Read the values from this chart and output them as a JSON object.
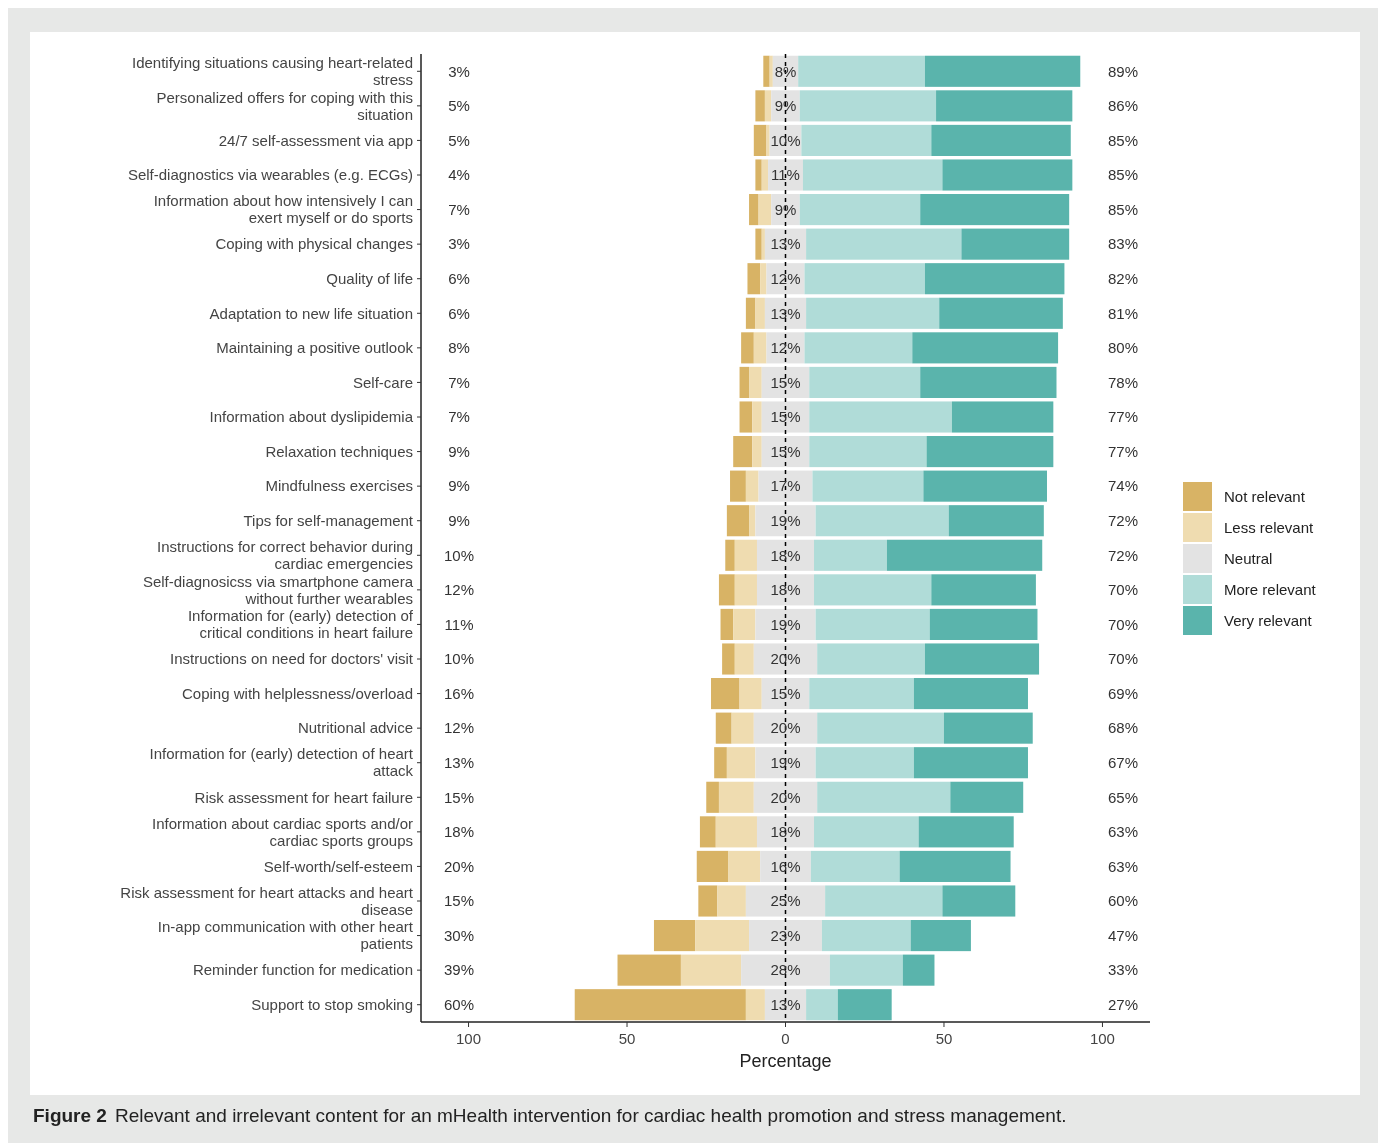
{
  "chart_data": {
    "type": "bar",
    "orientation": "horizontal",
    "xlabel": "Percentage",
    "legend": "right",
    "grid": false,
    "annotations": [
      "Figure 2",
      "Relevant and irrelevant content for an mHealth intervention for cardiac health promotion and stress management.",
      "3%",
      "5%",
      "5%",
      "4%",
      "7%",
      "3%",
      "6%",
      "6%",
      "8%",
      "7%",
      "7%",
      "9%",
      "9%",
      "9%",
      "10%",
      "12%",
      "11%",
      "10%",
      "16%",
      "12%",
      "13%",
      "15%",
      "18%",
      "20%",
      "15%",
      "30%",
      "39%",
      "60%",
      "89%",
      "86%",
      "85%",
      "85%",
      "85%",
      "83%",
      "82%",
      "81%",
      "80%",
      "78%",
      "77%",
      "77%",
      "74%",
      "72%",
      "72%",
      "70%",
      "70%",
      "70%",
      "69%",
      "68%",
      "67%",
      "65%",
      "63%",
      "63%",
      "60%",
      "47%",
      "33%",
      "27%"
    ],
    "categories": [
      "Identifying situations causing heart-related stress",
      "Personalized offers for coping with this situation",
      "24/7 self-assessment via app",
      "Self-diagnostics via wearables (e.g. ECGs)",
      "Information about how intensively I can exert myself or do sports",
      "Coping with physical changes",
      "Quality of life",
      "Adaptation to new life situation",
      "Maintaining a positive outlook",
      "Self-care",
      "Information about dyslipidemia",
      "Relaxation techniques",
      "Mindfulness exercises",
      "Tips for self-management",
      "Instructions for correct behavior during cardiac emergencies",
      "Self-diagnosicss via smartphone camera without further wearables",
      "Information for (early) detection of critical conditions in heart failure",
      "Instructions on need for doctors' visit",
      "Coping with helplessness/overload",
      "Nutritional advice",
      "Information for (early) detection of heart attack",
      "Risk assessment for heart failure",
      "Information about cardiac sports and/or cardiac sports groups",
      "Self-worth/self-esteem",
      "Risk assessment for heart attacks and heart disease",
      "In-app communication with other heart patients",
      "Reminder function for medication",
      "Support to stop smoking"
    ],
    "xlim": [
      -115,
      115
    ],
    "xticks": [
      {
        "value": -100,
        "label": "100"
      },
      {
        "value": -50,
        "label": "50"
      },
      0,
      50,
      100
    ],
    "ref_lines": [
      {
        "axis": "x",
        "value": 0,
        "color": "#000000",
        "line_style": "dashed"
      }
    ],
    "series": [
      {
        "name": "Not relevant",
        "color": "#d8b365",
        "base": [
          -7,
          -9.5,
          -10,
          -9.5,
          -11.5,
          -9.5,
          -12,
          -12.5,
          -14,
          -14.5,
          -14.5,
          -16.5,
          -17.5,
          -18.5,
          -19,
          -21,
          -20.5,
          -20,
          -23.5,
          -22,
          -22.5,
          -25,
          -27,
          -28,
          -27.5,
          -41.5,
          -53,
          -66.5
        ],
        "values": [
          2,
          3,
          4,
          2,
          3,
          2,
          4,
          3,
          4,
          3,
          4,
          6,
          5,
          7,
          3,
          5,
          4,
          4,
          9,
          5,
          4,
          4,
          5,
          10,
          6,
          13,
          20,
          54
        ]
      },
      {
        "name": "Less relevant",
        "color": "#efdcb0",
        "base": [
          -5,
          -6.5,
          -6,
          -7.5,
          -8.5,
          -7.5,
          -8,
          -9.5,
          -10,
          -11.5,
          -10.5,
          -10.5,
          -12.5,
          -11.5,
          -16,
          -16,
          -16.5,
          -16,
          -14.5,
          -17,
          -18.5,
          -21,
          -22,
          -18,
          -21.5,
          -28.5,
          -33,
          -12.5
        ],
        "values": [
          1,
          2,
          1,
          2,
          4,
          1,
          2,
          3,
          4,
          4,
          3,
          3,
          4,
          2,
          7,
          7,
          7,
          6,
          7,
          7,
          9,
          11,
          13,
          10,
          9,
          17,
          19,
          6
        ]
      },
      {
        "name": "Neutral",
        "color": "#e3e3e3",
        "base": [
          -4,
          -4.5,
          -5,
          -5.5,
          -4.5,
          -6.5,
          -6,
          -6.5,
          -6,
          -7.5,
          -7.5,
          -7.5,
          -8.5,
          -9.5,
          -9,
          -9,
          -9.5,
          -10,
          -7.5,
          -10,
          -9.5,
          -10,
          -9,
          -8,
          -12.5,
          -11.5,
          -14,
          -6.5
        ],
        "values": [
          8,
          9,
          10,
          11,
          9,
          13,
          12,
          13,
          12,
          15,
          15,
          15,
          17,
          19,
          18,
          18,
          19,
          20,
          15,
          20,
          19,
          20,
          18,
          16,
          25,
          23,
          28,
          13
        ],
        "value_labels": [
          "8%",
          "9%",
          "10%",
          "11%",
          "9%",
          "13%",
          "12%",
          "13%",
          "12%",
          "15%",
          "15%",
          "15%",
          "17%",
          "19%",
          "18%",
          "18%",
          "19%",
          "20%",
          "15%",
          "20%",
          "19%",
          "20%",
          "18%",
          "16%",
          "25%",
          "23%",
          "28%",
          "13%"
        ]
      },
      {
        "name": "More relevant",
        "color": "#b0dcd8",
        "base": [
          4,
          4.5,
          5,
          5.5,
          4.5,
          6.5,
          6,
          6.5,
          6,
          7.5,
          7.5,
          7.5,
          8.5,
          9.5,
          9,
          9,
          9.5,
          10,
          7.5,
          10,
          9.5,
          10,
          9,
          8,
          12.5,
          11.5,
          14,
          6.5
        ],
        "values": [
          40,
          43,
          41,
          44,
          38,
          49,
          38,
          42,
          34,
          35,
          45,
          37,
          35,
          42,
          23,
          37,
          36,
          34,
          33,
          40,
          31,
          42,
          33,
          28,
          37,
          28,
          23,
          10
        ]
      },
      {
        "name": "Very relevant",
        "color": "#5ab4ac",
        "base": [
          44,
          47.5,
          46,
          49.5,
          42.5,
          55.5,
          44,
          48.5,
          40,
          42.5,
          52.5,
          44.5,
          43.5,
          51.5,
          32,
          46,
          45.5,
          44,
          40.5,
          50,
          40.5,
          52,
          42,
          36,
          49.5,
          39.5,
          37,
          16.5
        ],
        "values": [
          49,
          43,
          44,
          41,
          47,
          34,
          44,
          39,
          46,
          43,
          32,
          40,
          39,
          30,
          49,
          33,
          34,
          36,
          36,
          28,
          36,
          23,
          30,
          35,
          23,
          19,
          10,
          17
        ]
      }
    ]
  }
}
